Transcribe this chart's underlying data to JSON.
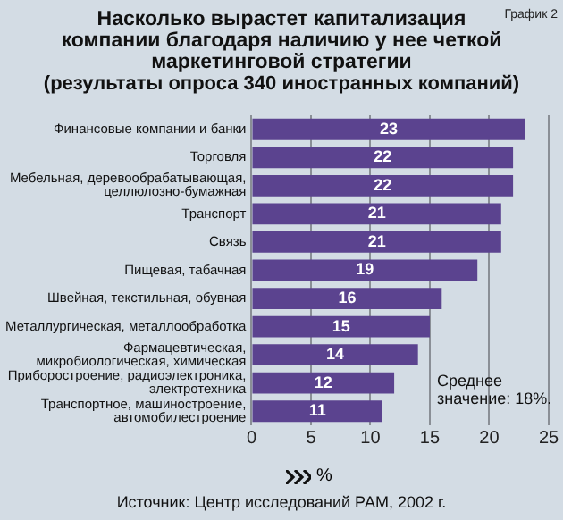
{
  "chart_data": {
    "type": "bar",
    "orientation": "horizontal",
    "title": "Насколько вырастет капитализация компании благодаря наличию у нее четкой маркетинговой стратегии",
    "subtitle": "(результаты опроса 340 иностранных компаний)",
    "xlabel": "%",
    "categories": [
      "Финансовые компании и банки",
      "Торговля",
      "Мебельная, деревообрабатывающая, целлюлозно-бумажная",
      "Транспорт",
      "Связь",
      "Пищевая, табачная",
      "Швейная, текстильная, обувная",
      "Металлургическая, металлообработка",
      "Фармацевтическая, микробиологическая, химическая",
      "Приборостроение, радиоэлектроника, электротехника",
      "Транспортное, машиностроение, автомобилестроение"
    ],
    "values": [
      23,
      22,
      22,
      21,
      21,
      19,
      16,
      15,
      14,
      12,
      11
    ],
    "color": "#5b438f",
    "data_labels": true,
    "xlim": [
      0,
      25
    ],
    "xticks": [
      0,
      5,
      10,
      15,
      20,
      25
    ],
    "grid": "x",
    "legend": false,
    "annotations": [
      "График 2",
      "Среднее значение: 18%.",
      "Источник: Центр исследований РАМ, 2002 г."
    ]
  }
}
